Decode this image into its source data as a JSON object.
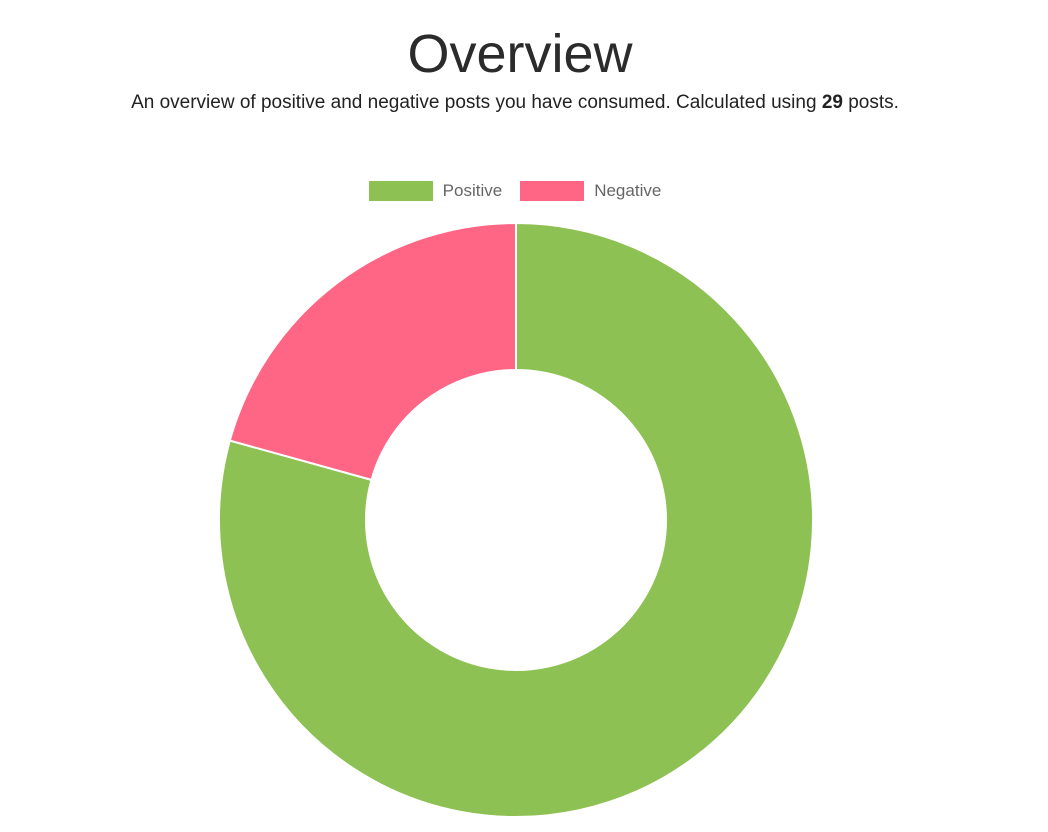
{
  "header": {
    "title": "Overview",
    "subtitle_prefix": "An overview of positive and negative posts you have consumed. Calculated using ",
    "post_count": "29",
    "subtitle_suffix": " posts."
  },
  "chart_data": {
    "type": "pie",
    "variant": "doughnut",
    "legend_position": "top",
    "categories": [
      "Positive",
      "Negative"
    ],
    "values": [
      23,
      6
    ],
    "colors": [
      "#8ec153",
      "#ff6584"
    ],
    "border_color": "#ffffff"
  }
}
